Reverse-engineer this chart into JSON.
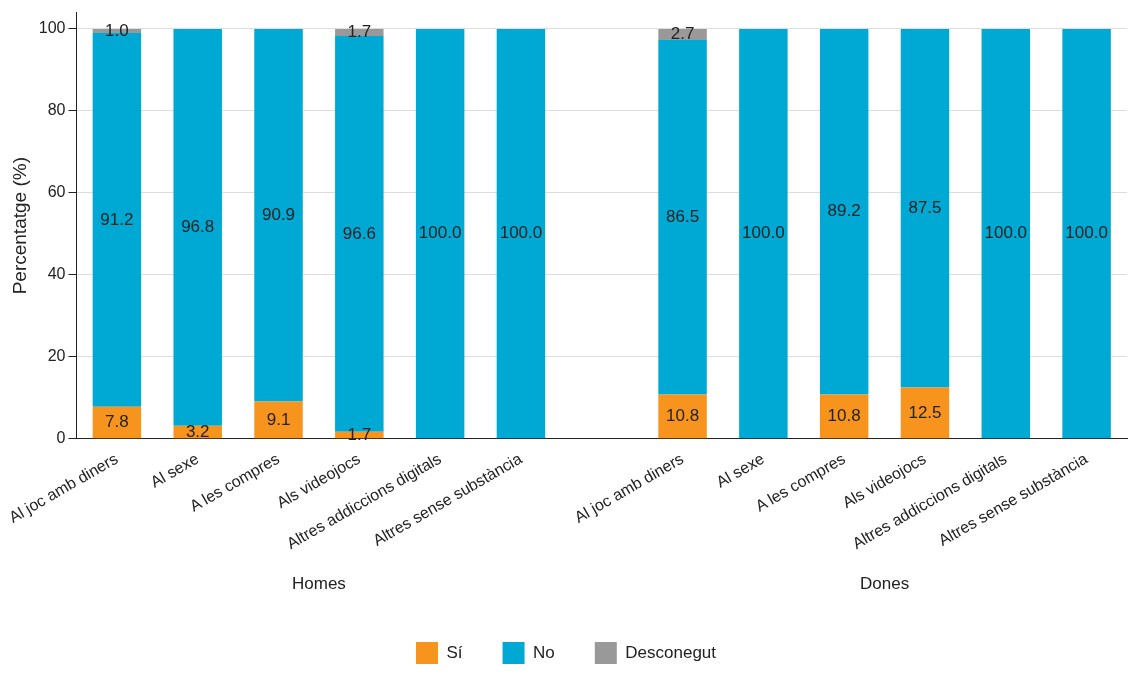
{
  "chart_data": {
    "type": "bar",
    "stacked": true,
    "ylabel": "Percentatge (%)",
    "categories": [
      "Al joc amb diners",
      "Al sexe",
      "A les compres",
      "Als videojocs",
      "Altres addiccions digitals",
      "Altres sense substància",
      null,
      "Al joc amb diners",
      "Al sexe",
      "A les compres",
      "Als videojocs",
      "Altres addiccions digitals",
      "Altres sense substància"
    ],
    "series": [
      {
        "name": "Sí",
        "color": "#f7941d",
        "values": [
          7.8,
          3.2,
          9.1,
          1.7,
          null,
          null,
          null,
          10.8,
          null,
          10.8,
          12.5,
          null,
          null
        ],
        "value_labels": [
          "7.8",
          "3.2",
          "9.1",
          "1.7",
          null,
          null,
          null,
          "10.8",
          null,
          "10.8",
          "12.5",
          null,
          null
        ]
      },
      {
        "name": "No",
        "color": "#00a9d4",
        "values": [
          91.2,
          96.8,
          90.9,
          96.6,
          100,
          100,
          null,
          86.5,
          100,
          89.2,
          87.5,
          100,
          100
        ],
        "value_labels": [
          "91.2",
          "96.8",
          "90.9",
          "96.6",
          "100.0",
          "100.0",
          null,
          "86.5",
          "100.0",
          "89.2",
          "87.5",
          "100.0",
          "100.0"
        ]
      },
      {
        "name": "Desconegut",
        "color": "#999999",
        "values": [
          1.0,
          null,
          null,
          1.7,
          null,
          null,
          null,
          2.7,
          null,
          null,
          null,
          null,
          null
        ],
        "value_labels": [
          "1.0",
          null,
          null,
          "1.7",
          null,
          null,
          null,
          "2.7",
          null,
          null,
          null,
          null,
          null
        ]
      }
    ],
    "annotations": [
      "Homes",
      "Dones"
    ],
    "ylim": [
      0,
      104
    ],
    "yticks": [
      0,
      20,
      40,
      60,
      80,
      100
    ],
    "grid": "y",
    "legend": "bottom"
  }
}
